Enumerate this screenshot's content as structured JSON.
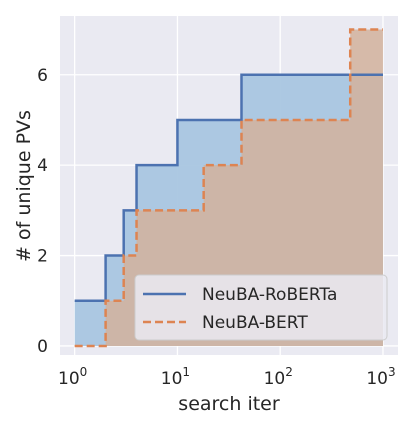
{
  "chart_data": {
    "type": "line",
    "title": "",
    "xlabel": "search iter",
    "ylabel": "# of unique PVs",
    "xscale": "log",
    "xlim": [
      0.72,
      1400
    ],
    "ylim": [
      -0.2,
      7.3
    ],
    "grid": true,
    "legend_position": "bottom-right",
    "x_ticks": [
      {
        "value": 1,
        "base": "10",
        "exp": "0"
      },
      {
        "value": 10,
        "base": "10",
        "exp": "1"
      },
      {
        "value": 100,
        "base": "10",
        "exp": "2"
      },
      {
        "value": 1000,
        "base": "10",
        "exp": "3"
      }
    ],
    "y_ticks": [
      {
        "value": 0,
        "label": "0"
      },
      {
        "value": 2,
        "label": "2"
      },
      {
        "value": 4,
        "label": "4"
      },
      {
        "value": 6,
        "label": "6"
      }
    ],
    "series": [
      {
        "name": "NeuBA-RoBERTa",
        "style": "solid step, filled",
        "color": "#4c72b0",
        "fill": "#a9c6e0",
        "x": [
          1,
          2,
          3,
          4,
          10,
          42,
          1000
        ],
        "y": [
          1,
          2,
          3,
          4,
          5,
          6,
          6
        ]
      },
      {
        "name": "NeuBA-BERT",
        "style": "dashed step, filled",
        "color": "#dd8452",
        "fill": "#d2b19c",
        "x": [
          1,
          2,
          3,
          4,
          18,
          42,
          480,
          1000
        ],
        "y": [
          0,
          1,
          2,
          3,
          4,
          5,
          7,
          7
        ]
      }
    ]
  }
}
